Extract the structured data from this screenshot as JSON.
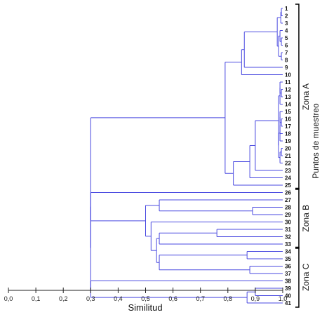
{
  "chart_data": {
    "type": "dendrogram",
    "orientation": "horizontal",
    "xlabel": "Similitud",
    "ylabel": "Puntos de muestreo",
    "xlim": [
      0.0,
      1.0
    ],
    "xticks": [
      "0,0",
      "0,1",
      "0,2",
      "0,3",
      "0,4",
      "0,5",
      "0,6",
      "0,7",
      "0,8",
      "0,9",
      "1,0"
    ],
    "leaves": [
      "1",
      "2",
      "3",
      "4",
      "5",
      "6",
      "7",
      "8",
      "9",
      "10",
      "11",
      "12",
      "13",
      "14",
      "15",
      "16",
      "17",
      "18",
      "19",
      "20",
      "21",
      "22",
      "23",
      "24",
      "25",
      "26",
      "27",
      "28",
      "29",
      "30",
      "31",
      "32",
      "33",
      "34",
      "35",
      "36",
      "37",
      "38",
      "39",
      "40",
      "41"
    ],
    "zones": [
      {
        "label": "Zona A",
        "from_leaf": "1",
        "to_leaf": "25"
      },
      {
        "label": "Zona B",
        "from_leaf": "26",
        "to_leaf": "33"
      },
      {
        "label": "Zona C",
        "from_leaf": "34",
        "to_leaf": "41"
      }
    ],
    "merges": [
      {
        "id": "c1",
        "children": [
          "1",
          "2"
        ],
        "similarity": 0.995
      },
      {
        "id": "c2",
        "children": [
          "c1",
          "3"
        ],
        "similarity": 0.993
      },
      {
        "id": "c3",
        "children": [
          "5",
          "6"
        ],
        "similarity": 0.995
      },
      {
        "id": "c4",
        "children": [
          "4",
          "c3"
        ],
        "similarity": 0.99
      },
      {
        "id": "c5",
        "children": [
          "7",
          "8"
        ],
        "similarity": 0.995
      },
      {
        "id": "c6",
        "children": [
          "c4",
          "c5"
        ],
        "similarity": 0.985
      },
      {
        "id": "c7",
        "children": [
          "c2",
          "c6"
        ],
        "similarity": 0.98
      },
      {
        "id": "c8",
        "children": [
          "c7",
          "9"
        ],
        "similarity": 0.86
      },
      {
        "id": "c9",
        "children": [
          "c8",
          "10"
        ],
        "similarity": 0.85
      },
      {
        "id": "c10",
        "children": [
          "12",
          "13"
        ],
        "similarity": 0.995
      },
      {
        "id": "c11",
        "children": [
          "11",
          "c10"
        ],
        "similarity": 0.99
      },
      {
        "id": "c12",
        "children": [
          "c11",
          "14"
        ],
        "similarity": 0.99
      },
      {
        "id": "c13",
        "children": [
          "16",
          "17"
        ],
        "similarity": 0.995
      },
      {
        "id": "c14",
        "children": [
          "15",
          "c13"
        ],
        "similarity": 0.99
      },
      {
        "id": "c15",
        "children": [
          "c14",
          "18"
        ],
        "similarity": 0.99
      },
      {
        "id": "c16",
        "children": [
          "c15",
          "19"
        ],
        "similarity": 0.99
      },
      {
        "id": "c17",
        "children": [
          "20",
          "21"
        ],
        "similarity": 0.995
      },
      {
        "id": "c18",
        "children": [
          "c17",
          "22"
        ],
        "similarity": 0.99
      },
      {
        "id": "c19",
        "children": [
          "c16",
          "c18"
        ],
        "similarity": 0.985
      },
      {
        "id": "c20",
        "children": [
          "c12",
          "c19"
        ],
        "similarity": 0.985
      },
      {
        "id": "c21",
        "children": [
          "c20",
          "23"
        ],
        "similarity": 0.9
      },
      {
        "id": "c22",
        "children": [
          "c21",
          "24"
        ],
        "similarity": 0.88
      },
      {
        "id": "c23",
        "children": [
          "c22",
          "25"
        ],
        "similarity": 0.82
      },
      {
        "id": "c24",
        "children": [
          "c9",
          "c23"
        ],
        "similarity": 0.79
      },
      {
        "id": "c25",
        "children": [
          "28",
          "29"
        ],
        "similarity": 0.89
      },
      {
        "id": "c26",
        "children": [
          "27",
          "c25"
        ],
        "similarity": 0.55
      },
      {
        "id": "c27",
        "children": [
          "31",
          "32"
        ],
        "similarity": 0.76
      },
      {
        "id": "c28",
        "children": [
          "c27",
          "33"
        ],
        "similarity": 0.55
      },
      {
        "id": "c29",
        "children": [
          "34",
          "35"
        ],
        "similarity": 0.87
      },
      {
        "id": "c30",
        "children": [
          "36",
          "37"
        ],
        "similarity": 0.88
      },
      {
        "id": "c31",
        "children": [
          "c29",
          "c30"
        ],
        "similarity": 0.55
      },
      {
        "id": "c32",
        "children": [
          "c28",
          "c31"
        ],
        "similarity": 0.54
      },
      {
        "id": "c33",
        "children": [
          "30",
          "c32"
        ],
        "similarity": 0.52
      },
      {
        "id": "c34",
        "children": [
          "c26",
          "c33"
        ],
        "similarity": 0.5
      },
      {
        "id": "c35",
        "children": [
          "39",
          "40"
        ],
        "similarity": 0.9
      },
      {
        "id": "c36",
        "children": [
          "c35",
          "41"
        ],
        "similarity": 0.87
      },
      {
        "id": "c37",
        "children": [
          "38",
          "c36"
        ],
        "similarity": 0.3
      },
      {
        "id": "c38",
        "children": [
          "26",
          "c34"
        ],
        "similarity": 0.3
      },
      {
        "id": "c39",
        "children": [
          "c38",
          "c37"
        ],
        "similarity": 0.3
      },
      {
        "id": "c40",
        "children": [
          "c24",
          "c39"
        ],
        "similarity": 0.3
      },
      {
        "id": "c41",
        "children": [
          "c40",
          "c40"
        ],
        "similarity": 0.3
      }
    ],
    "colors": {
      "branch": "#4a4ae0",
      "axis": "#222222",
      "bracket": "#000000"
    }
  }
}
